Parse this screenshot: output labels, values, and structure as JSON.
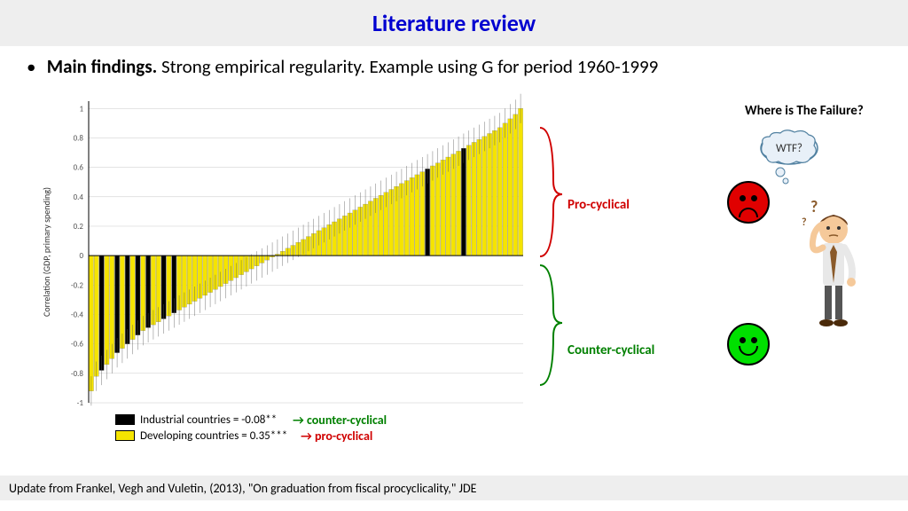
{
  "title": "Literature review",
  "bullet": {
    "lead": "Main findings.",
    "rest": " Strong empirical regularity. Example using G for period 1960-1999"
  },
  "chart": {
    "type": "bar",
    "ylabel": "Correlation (GDP, primary spending)",
    "ylim": [
      -1,
      1.05
    ],
    "yticks": [
      -1,
      -0.8,
      -0.6,
      -0.4,
      -0.2,
      0,
      0.2,
      0.4,
      0.6,
      0.8,
      1
    ],
    "bar_color_dev": "#f5e400",
    "bar_color_ind": "#000000",
    "grid_color": "#c8c8c8",
    "axis_color": "#000000",
    "background": "#ffffff",
    "values": [
      -0.92,
      -0.82,
      -0.78,
      -0.74,
      -0.7,
      -0.66,
      -0.63,
      -0.6,
      -0.57,
      -0.54,
      -0.51,
      -0.49,
      -0.47,
      -0.45,
      -0.43,
      -0.41,
      -0.39,
      -0.37,
      -0.35,
      -0.33,
      -0.31,
      -0.29,
      -0.27,
      -0.25,
      -0.23,
      -0.21,
      -0.19,
      -0.17,
      -0.15,
      -0.13,
      -0.11,
      -0.09,
      -0.07,
      -0.05,
      -0.03,
      -0.01,
      0.01,
      0.03,
      0.05,
      0.07,
      0.09,
      0.11,
      0.13,
      0.15,
      0.17,
      0.19,
      0.21,
      0.23,
      0.25,
      0.27,
      0.29,
      0.31,
      0.33,
      0.35,
      0.37,
      0.39,
      0.41,
      0.43,
      0.45,
      0.47,
      0.49,
      0.51,
      0.53,
      0.55,
      0.57,
      0.59,
      0.61,
      0.63,
      0.65,
      0.67,
      0.69,
      0.71,
      0.73,
      0.75,
      0.77,
      0.79,
      0.81,
      0.83,
      0.85,
      0.87,
      0.9,
      0.93,
      0.96,
      1.0
    ],
    "industrial_idx": [
      2,
      5,
      7,
      9,
      11,
      14,
      16,
      65,
      72
    ],
    "ci_half": 0.1
  },
  "brackets": {
    "pro_color": "#d00000",
    "counter_color": "#008000"
  },
  "labels": {
    "pro": "Pro-cyclical",
    "counter": "Counter-cyclical"
  },
  "legend": {
    "ind": "Industrial countries = -0.08**",
    "dev": "Developing countries = 0.35***",
    "arrow_counter": "→ counter-cyclical",
    "arrow_pro": "→ pro-cyclical"
  },
  "wtf": {
    "title": "Where is The Failure?",
    "bubble": "WTF?"
  },
  "footer": "Update from Frankel, Vegh and Vuletin, (2013), \"On graduation from fiscal procyclicality,\" JDE"
}
